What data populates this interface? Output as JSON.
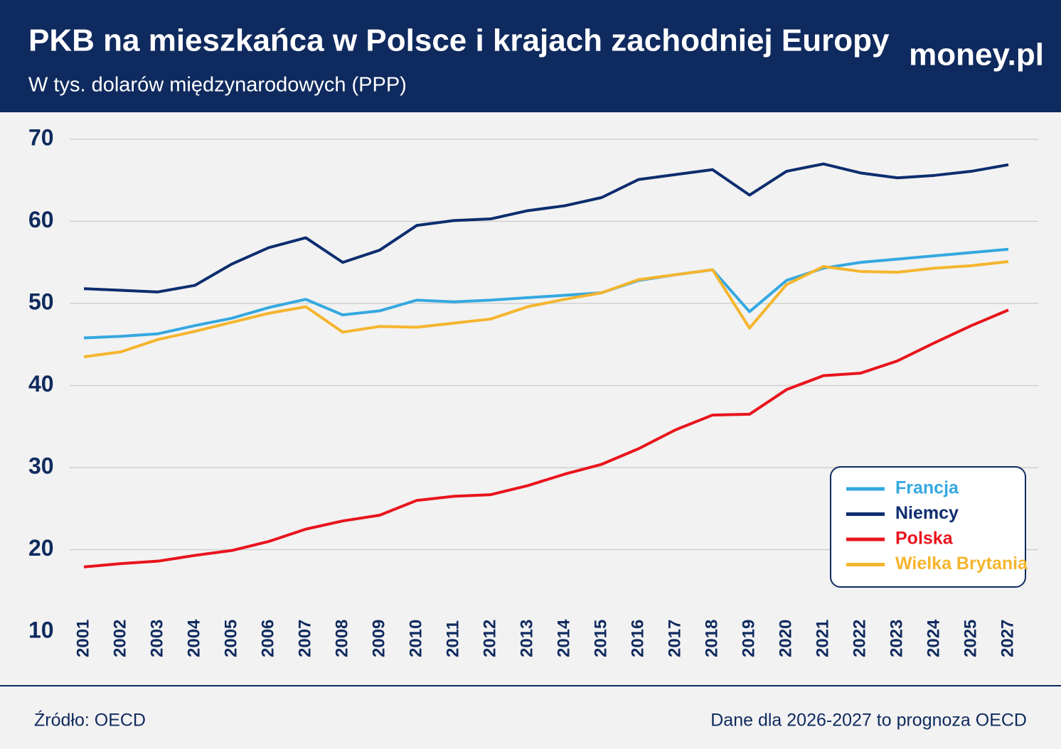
{
  "chart_data": {
    "type": "line",
    "title": "PKB na mieszkańca w Polsce i krajach zachodniej Europy",
    "subtitle": "W tys. dolarów międzynarodowych (PPP)",
    "logo": "money.pl",
    "source": "Źródło: OECD",
    "note": "Dane dla 2026-2027 to prognoza OECD",
    "categories": [
      "2001",
      "2002",
      "2003",
      "2004",
      "2005",
      "2006",
      "2007",
      "2008",
      "2009",
      "2010",
      "2011",
      "2012",
      "2013",
      "2014",
      "2015",
      "2016",
      "2017",
      "2018",
      "2019",
      "2020",
      "2021",
      "2022",
      "2023",
      "2024",
      "2025",
      "2027"
    ],
    "series": [
      {
        "name": "Francja",
        "color": "#35a8e0",
        "values": [
          45.8,
          46.0,
          46.3,
          47.3,
          48.2,
          49.5,
          50.5,
          48.6,
          49.1,
          50.4,
          50.2,
          50.4,
          50.7,
          51.0,
          51.3,
          52.8,
          53.5,
          54.1,
          49.0,
          52.8,
          54.3,
          55.0,
          55.4,
          55.8,
          56.2,
          56.6
        ]
      },
      {
        "name": "Niemcy",
        "color": "#0d2d6e",
        "values": [
          51.8,
          51.6,
          51.4,
          52.2,
          54.8,
          56.8,
          58.0,
          55.0,
          56.5,
          59.5,
          60.1,
          60.3,
          61.3,
          61.9,
          62.9,
          65.1,
          65.7,
          66.3,
          63.2,
          66.1,
          67.0,
          65.9,
          65.3,
          65.6,
          66.1,
          66.9
        ]
      },
      {
        "name": "Polska",
        "color": "#e8141c",
        "values": [
          17.9,
          18.3,
          18.6,
          19.3,
          19.9,
          21.0,
          22.5,
          23.5,
          24.2,
          26.0,
          26.5,
          26.7,
          27.8,
          29.2,
          30.4,
          32.3,
          34.6,
          36.4,
          36.5,
          39.5,
          41.2,
          41.5,
          43.0,
          45.2,
          47.3,
          49.2
        ]
      },
      {
        "name": "Wielka Brytania",
        "color": "#f5b52e",
        "values": [
          43.5,
          44.1,
          45.6,
          46.6,
          47.7,
          48.8,
          49.6,
          46.5,
          47.2,
          47.1,
          47.6,
          48.1,
          49.6,
          50.5,
          51.3,
          52.9,
          53.5,
          54.1,
          47.0,
          52.3,
          54.5,
          53.9,
          53.8,
          54.3,
          54.6,
          55.1
        ]
      }
    ],
    "ylim": [
      10,
      70
    ],
    "yticks": [
      10,
      20,
      30,
      40,
      50,
      60,
      70
    ],
    "grid": true
  }
}
